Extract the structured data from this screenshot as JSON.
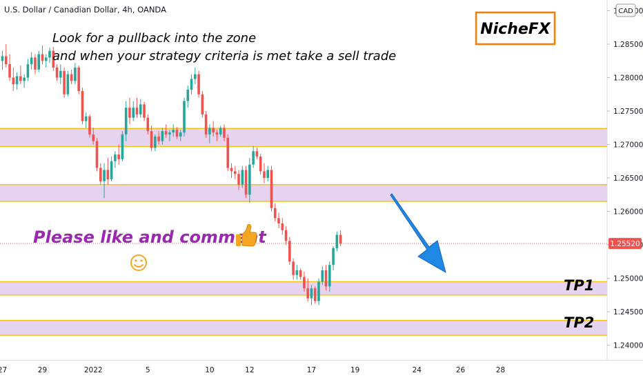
{
  "chart_data": {
    "type": "candlestick",
    "title": "U.S. Dollar / Canadian Dollar, 4h, OANDA",
    "currency_badge": "CAD",
    "y_ticks": [
      "1.29000",
      "1.28500",
      "1.28000",
      "1.27500",
      "1.27000",
      "1.26500",
      "1.26000",
      "1.25500",
      "1.25000",
      "1.24500",
      "1.24000"
    ],
    "x_ticks": [
      {
        "label": "27",
        "pos": 0
      },
      {
        "label": "29",
        "pos": 11
      },
      {
        "label": "2022",
        "pos": 25
      },
      {
        "label": "5",
        "pos": 40
      },
      {
        "label": "10",
        "pos": 57
      },
      {
        "label": "12",
        "pos": 68
      },
      {
        "label": "17",
        "pos": 85
      },
      {
        "label": "19",
        "pos": 97
      },
      {
        "label": "24",
        "pos": 114
      },
      {
        "label": "26",
        "pos": 126
      },
      {
        "label": "28",
        "pos": 137
      }
    ],
    "ylim": [
      1.2378,
      1.2916
    ],
    "last_price": "1.25520",
    "last_price_value": 1.2552,
    "zones": [
      {
        "low": 1.2697,
        "high": 1.2724
      },
      {
        "low": 1.2615,
        "high": 1.264
      },
      {
        "low": 1.2475,
        "high": 1.2495
      },
      {
        "low": 1.2415,
        "high": 1.2437
      }
    ],
    "annotations": {
      "note_line1": "Look for a pullback into the zone",
      "note_line2": "and when your strategy criteria is met take a sell trade",
      "brand": "NicheFX",
      "cta": "Please like and comment",
      "tp1": "TP1",
      "tp2": "TP2"
    },
    "colors": {
      "up": "#26a69a",
      "down": "#ef5350",
      "zone_fill": "#e6d3ef",
      "zone_line": "#f5c518",
      "arrow": "#1e88e5",
      "cta_text": "#9c27b0",
      "brand_border": "#ff7a00",
      "price_badge": "#ef5350"
    },
    "candles": [
      [
        1.2825,
        1.284,
        1.2812,
        1.2832
      ],
      [
        1.2832,
        1.285,
        1.2815,
        1.282
      ],
      [
        1.282,
        1.2835,
        1.2795,
        1.28
      ],
      [
        1.28,
        1.2815,
        1.278,
        1.279
      ],
      [
        1.279,
        1.2808,
        1.2782,
        1.2802
      ],
      [
        1.2802,
        1.2818,
        1.279,
        1.2795
      ],
      [
        1.2795,
        1.2805,
        1.2785,
        1.28
      ],
      [
        1.28,
        1.2828,
        1.2795,
        1.282
      ],
      [
        1.282,
        1.2838,
        1.2812,
        1.283
      ],
      [
        1.283,
        1.2835,
        1.2805,
        1.2812
      ],
      [
        1.2812,
        1.284,
        1.2808,
        1.2835
      ],
      [
        1.2835,
        1.2848,
        1.282,
        1.2825
      ],
      [
        1.2825,
        1.2835,
        1.2815,
        1.283
      ],
      [
        1.283,
        1.2845,
        1.2822,
        1.284
      ],
      [
        1.284,
        1.2846,
        1.281,
        1.2815
      ],
      [
        1.2815,
        1.282,
        1.2795,
        1.28
      ],
      [
        1.28,
        1.282,
        1.279,
        1.281
      ],
      [
        1.281,
        1.2815,
        1.277,
        1.2775
      ],
      [
        1.2775,
        1.281,
        1.2772,
        1.2805
      ],
      [
        1.2805,
        1.2812,
        1.279,
        1.2795
      ],
      [
        1.2795,
        1.2822,
        1.279,
        1.2815
      ],
      [
        1.2815,
        1.2818,
        1.2775,
        1.278
      ],
      [
        1.278,
        1.2785,
        1.273,
        1.2735
      ],
      [
        1.2735,
        1.2748,
        1.2725,
        1.2742
      ],
      [
        1.2742,
        1.2745,
        1.271,
        1.2715
      ],
      [
        1.2715,
        1.2725,
        1.27,
        1.2705
      ],
      [
        1.2705,
        1.271,
        1.266,
        1.2665
      ],
      [
        1.2665,
        1.2672,
        1.264,
        1.2645
      ],
      [
        1.2645,
        1.2672,
        1.262,
        1.2662
      ],
      [
        1.2662,
        1.268,
        1.264,
        1.2648
      ],
      [
        1.2648,
        1.2682,
        1.2645,
        1.2675
      ],
      [
        1.2675,
        1.269,
        1.2665,
        1.2685
      ],
      [
        1.2685,
        1.27,
        1.267,
        1.2678
      ],
      [
        1.2678,
        1.272,
        1.2675,
        1.2715
      ],
      [
        1.2715,
        1.2765,
        1.2705,
        1.2755
      ],
      [
        1.2755,
        1.277,
        1.273,
        1.274
      ],
      [
        1.274,
        1.2765,
        1.2735,
        1.2755
      ],
      [
        1.2755,
        1.277,
        1.274,
        1.2745
      ],
      [
        1.2745,
        1.2768,
        1.274,
        1.276
      ],
      [
        1.276,
        1.2764,
        1.2735,
        1.274
      ],
      [
        1.274,
        1.2745,
        1.2715,
        1.272
      ],
      [
        1.272,
        1.2728,
        1.269,
        1.2695
      ],
      [
        1.2695,
        1.2715,
        1.269,
        1.2712
      ],
      [
        1.2712,
        1.272,
        1.27,
        1.2705
      ],
      [
        1.2705,
        1.2725,
        1.27,
        1.272
      ],
      [
        1.272,
        1.273,
        1.271,
        1.2715
      ],
      [
        1.2715,
        1.2722,
        1.2705,
        1.2718
      ],
      [
        1.2718,
        1.273,
        1.2712,
        1.2722
      ],
      [
        1.2722,
        1.2726,
        1.2708,
        1.2712
      ],
      [
        1.2712,
        1.2722,
        1.2705,
        1.2718
      ],
      [
        1.2718,
        1.277,
        1.2712,
        1.2765
      ],
      [
        1.2765,
        1.2788,
        1.2755,
        1.2782
      ],
      [
        1.2782,
        1.2805,
        1.2775,
        1.2798
      ],
      [
        1.2798,
        1.2815,
        1.279,
        1.2805
      ],
      [
        1.2805,
        1.281,
        1.277,
        1.2775
      ],
      [
        1.2775,
        1.278,
        1.274,
        1.2745
      ],
      [
        1.2745,
        1.275,
        1.271,
        1.2715
      ],
      [
        1.2715,
        1.273,
        1.2702,
        1.2725
      ],
      [
        1.2725,
        1.2735,
        1.2712,
        1.2718
      ],
      [
        1.2718,
        1.2722,
        1.2705,
        1.2715
      ],
      [
        1.2715,
        1.2728,
        1.2712,
        1.2725
      ],
      [
        1.2725,
        1.273,
        1.2705,
        1.271
      ],
      [
        1.271,
        1.2715,
        1.266,
        1.2665
      ],
      [
        1.2665,
        1.2672,
        1.265,
        1.266
      ],
      [
        1.266,
        1.2668,
        1.2648,
        1.2656
      ],
      [
        1.2656,
        1.2662,
        1.2632,
        1.264
      ],
      [
        1.264,
        1.2668,
        1.2635,
        1.2662
      ],
      [
        1.2662,
        1.2668,
        1.262,
        1.2625
      ],
      [
        1.2625,
        1.268,
        1.2613,
        1.267
      ],
      [
        1.267,
        1.2698,
        1.2665,
        1.269
      ],
      [
        1.269,
        1.2695,
        1.2678,
        1.2682
      ],
      [
        1.2682,
        1.2686,
        1.2655,
        1.266
      ],
      [
        1.266,
        1.2672,
        1.2642,
        1.265
      ],
      [
        1.265,
        1.2668,
        1.2645,
        1.2662
      ],
      [
        1.2662,
        1.2668,
        1.26,
        1.2605
      ],
      [
        1.2605,
        1.2612,
        1.2585,
        1.259
      ],
      [
        1.259,
        1.2598,
        1.2575,
        1.2582
      ],
      [
        1.2582,
        1.259,
        1.2565,
        1.2572
      ],
      [
        1.2572,
        1.2578,
        1.255,
        1.2556
      ],
      [
        1.2556,
        1.2562,
        1.252,
        1.2525
      ],
      [
        1.2525,
        1.253,
        1.2498,
        1.2505
      ],
      [
        1.2505,
        1.252,
        1.2498,
        1.2512
      ],
      [
        1.2512,
        1.2515,
        1.2498,
        1.2502
      ],
      [
        1.2502,
        1.251,
        1.248,
        1.2485
      ],
      [
        1.2485,
        1.25,
        1.2465,
        1.247
      ],
      [
        1.247,
        1.249,
        1.246,
        1.2485
      ],
      [
        1.2485,
        1.2488,
        1.2462,
        1.2466
      ],
      [
        1.2466,
        1.25,
        1.246,
        1.2495
      ],
      [
        1.2495,
        1.2518,
        1.249,
        1.2512
      ],
      [
        1.2512,
        1.252,
        1.2482,
        1.2488
      ],
      [
        1.2488,
        1.2525,
        1.248,
        1.252
      ],
      [
        1.252,
        1.2548,
        1.2512,
        1.2545
      ],
      [
        1.2545,
        1.257,
        1.254,
        1.2565
      ],
      [
        1.2565,
        1.2572,
        1.2548,
        1.2552
      ]
    ]
  }
}
